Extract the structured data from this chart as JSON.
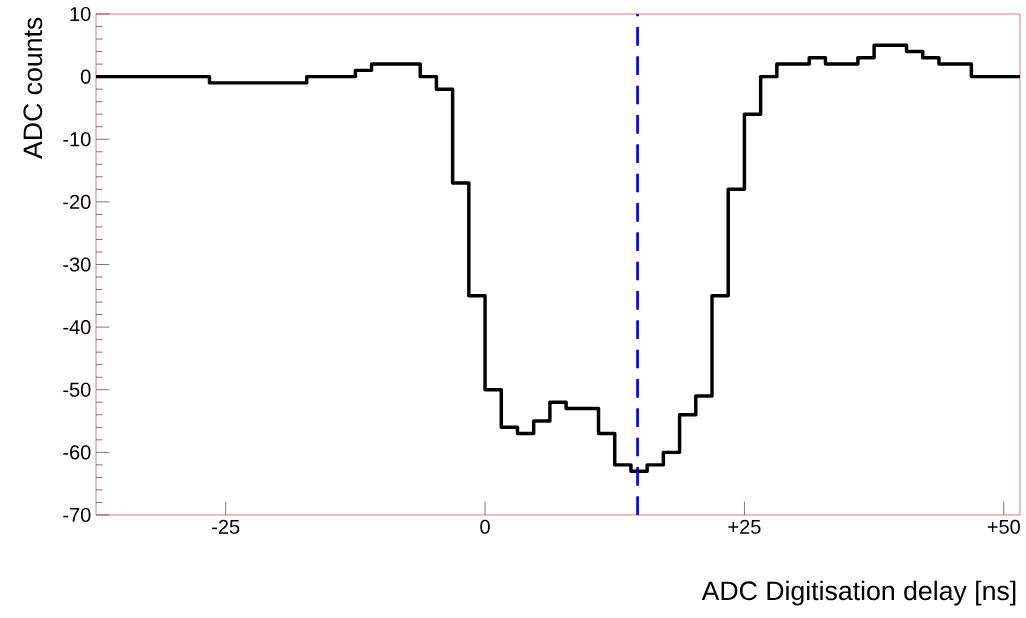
{
  "chart_data": {
    "type": "histogram",
    "xlabel": "ADC Digitisation delay [ns]",
    "ylabel": "ADC counts",
    "bins": [
      -37.5,
      -35.9375,
      -34.375,
      -32.8125,
      -31.25,
      -29.6875,
      -28.125,
      -26.5625,
      -25,
      -23.4375,
      -21.875,
      -20.3125,
      -18.75,
      -17.1875,
      -15.625,
      -14.0625,
      -12.5,
      -10.9375,
      -9.375,
      -7.8125,
      -6.25,
      -4.6875,
      -3.125,
      -1.5625,
      0,
      1.5625,
      3.125,
      4.6875,
      6.25,
      7.8125,
      9.375,
      10.9375,
      12.5,
      14.0625,
      15.625,
      17.1875,
      18.75,
      20.3125,
      21.875,
      23.4375,
      25,
      26.5625,
      28.125,
      29.6875,
      31.25,
      32.8125,
      34.375,
      35.9375,
      37.5,
      39.0625,
      40.625,
      42.1875,
      43.75,
      45.3125,
      46.875,
      48.4375,
      50,
      51.5625
    ],
    "values": [
      0,
      0,
      0,
      0,
      0,
      0,
      0,
      -1,
      -1,
      -1,
      -1,
      -1,
      -1,
      0,
      0,
      0,
      1,
      2,
      2,
      2,
      0,
      -2,
      -17,
      -35,
      -50,
      -56,
      -57,
      -55,
      -52,
      -53,
      -53,
      -57,
      -62,
      -63,
      -62,
      -60,
      -54,
      -51,
      -35,
      -18,
      -6,
      0,
      2,
      2,
      3,
      2,
      2,
      3,
      5,
      5,
      4,
      3,
      2,
      2,
      0,
      0,
      0
    ],
    "color": "#000000",
    "xlim": [
      -37.5,
      51.5625
    ],
    "ylim": [
      -70,
      10
    ],
    "xticks": [
      {
        "value": -25,
        "label": "-25"
      },
      0,
      {
        "value": 25,
        "label": "+25"
      },
      {
        "value": 50,
        "label": "+50"
      }
    ],
    "yticks": [
      -70,
      -60,
      -50,
      -40,
      -30,
      -20,
      -10,
      0,
      10
    ],
    "ref_lines": [
      {
        "axis": "x",
        "value": 14.7,
        "color": "#0000ff",
        "line_style": "dashed"
      }
    ],
    "grid": false
  }
}
